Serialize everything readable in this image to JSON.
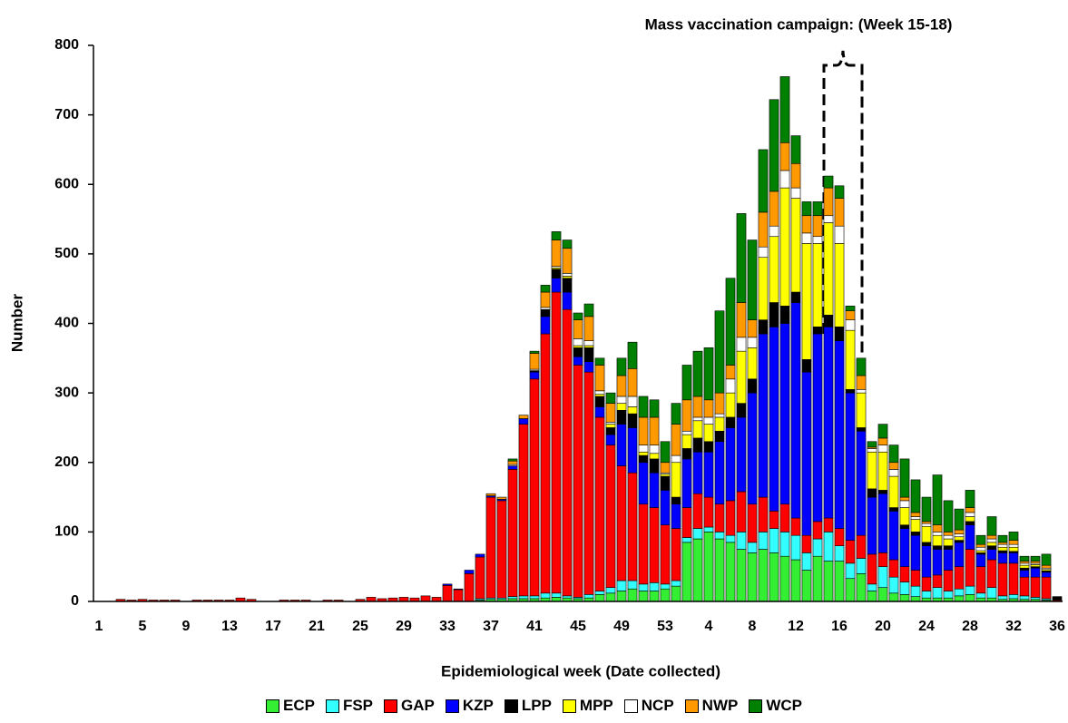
{
  "chart_data": {
    "type": "stacked_bar",
    "title": "Mass vaccination campaign: (Week 15-18)",
    "xlabel": "Epidemiological week (Date collected)",
    "ylabel": "Number",
    "ylim": [
      0,
      800
    ],
    "yticks": [
      0,
      100,
      200,
      300,
      400,
      500,
      600,
      700,
      800
    ],
    "legend": "bottom",
    "categories": [
      "1",
      null,
      null,
      null,
      "5",
      null,
      null,
      null,
      "9",
      null,
      null,
      null,
      "13",
      null,
      null,
      null,
      "17",
      null,
      null,
      null,
      "21",
      null,
      null,
      null,
      "25",
      null,
      null,
      null,
      "29",
      null,
      null,
      null,
      "33",
      null,
      null,
      null,
      "37",
      null,
      null,
      null,
      "41",
      null,
      null,
      null,
      "45",
      null,
      null,
      null,
      "49",
      null,
      null,
      null,
      "53",
      null,
      null,
      null,
      "4",
      null,
      null,
      null,
      "8",
      null,
      null,
      null,
      "12",
      null,
      null,
      null,
      "16",
      null,
      null,
      null,
      "20",
      null,
      null,
      null,
      "24",
      null,
      null,
      null,
      "28",
      null,
      null,
      null,
      "32",
      null,
      null,
      null,
      "36"
    ],
    "series": [
      {
        "name": "ECP",
        "color": "#33ee33",
        "values": [
          0,
          0,
          0,
          0,
          0,
          0,
          0,
          0,
          0,
          0,
          0,
          0,
          0,
          0,
          0,
          0,
          0,
          0,
          0,
          0,
          0,
          0,
          0,
          0,
          0,
          0,
          0,
          0,
          0,
          0,
          0,
          0,
          0,
          0,
          0,
          2,
          3,
          3,
          4,
          4,
          4,
          5,
          6,
          5,
          4,
          5,
          10,
          12,
          15,
          18,
          15,
          15,
          18,
          22,
          85,
          90,
          100,
          90,
          85,
          75,
          70,
          75,
          70,
          65,
          60,
          45,
          65,
          58,
          58,
          33,
          40,
          15,
          20,
          12,
          10,
          7,
          5,
          5,
          5,
          8,
          10,
          5,
          5,
          3,
          4,
          3,
          3,
          2,
          0
        ]
      },
      {
        "name": "FSP",
        "color": "#33ffff",
        "values": [
          0,
          0,
          0,
          0,
          0,
          0,
          0,
          0,
          0,
          0,
          0,
          0,
          0,
          0,
          0,
          0,
          0,
          0,
          0,
          0,
          0,
          0,
          0,
          0,
          0,
          0,
          0,
          0,
          0,
          0,
          0,
          0,
          0,
          0,
          0,
          2,
          2,
          2,
          3,
          4,
          4,
          7,
          6,
          3,
          2,
          5,
          5,
          8,
          15,
          12,
          10,
          12,
          7,
          8,
          7,
          15,
          7,
          10,
          10,
          25,
          15,
          25,
          35,
          35,
          35,
          25,
          25,
          42,
          22,
          22,
          22,
          10,
          30,
          23,
          18,
          15,
          10,
          15,
          10,
          10,
          12,
          7,
          15,
          5,
          6,
          5,
          3,
          2,
          0
        ]
      },
      {
        "name": "GAP",
        "color": "#ff0000",
        "values": [
          0,
          0,
          3,
          2,
          3,
          2,
          2,
          2,
          0,
          2,
          2,
          2,
          2,
          5,
          3,
          0,
          0,
          2,
          2,
          2,
          0,
          2,
          2,
          0,
          3,
          6,
          4,
          5,
          6,
          5,
          8,
          6,
          23,
          17,
          40,
          60,
          145,
          140,
          183,
          247,
          312,
          373,
          433,
          412,
          334,
          320,
          250,
          205,
          165,
          155,
          115,
          108,
          85,
          75,
          43,
          50,
          43,
          40,
          50,
          58,
          55,
          50,
          25,
          40,
          25,
          25,
          25,
          20,
          25,
          33,
          33,
          43,
          20,
          25,
          22,
          23,
          20,
          18,
          30,
          32,
          53,
          38,
          40,
          47,
          45,
          27,
          29,
          31,
          2
        ]
      },
      {
        "name": "KZP",
        "color": "#0000ff",
        "values": [
          0,
          0,
          0,
          0,
          0,
          0,
          0,
          0,
          0,
          0,
          0,
          0,
          0,
          0,
          0,
          0,
          0,
          0,
          0,
          0,
          0,
          0,
          0,
          0,
          0,
          0,
          0,
          0,
          0,
          0,
          0,
          0,
          2,
          1,
          5,
          4,
          2,
          2,
          5,
          8,
          10,
          25,
          20,
          25,
          12,
          15,
          15,
          15,
          60,
          65,
          60,
          50,
          50,
          35,
          70,
          60,
          65,
          90,
          105,
          107,
          160,
          235,
          265,
          260,
          310,
          235,
          270,
          275,
          270,
          212,
          150,
          82,
          85,
          70,
          55,
          50,
          45,
          37,
          30,
          35,
          35,
          18,
          15,
          15,
          15,
          10,
          13,
          7,
          0
        ]
      },
      {
        "name": "LPP",
        "color": "#000000",
        "values": [
          0,
          0,
          0,
          0,
          0,
          0,
          0,
          0,
          0,
          0,
          0,
          0,
          0,
          0,
          0,
          0,
          0,
          0,
          0,
          0,
          0,
          0,
          0,
          0,
          0,
          0,
          0,
          0,
          0,
          0,
          0,
          0,
          0,
          0,
          0,
          0,
          0,
          0,
          0,
          0,
          2,
          10,
          13,
          20,
          13,
          20,
          15,
          10,
          20,
          20,
          10,
          20,
          20,
          10,
          15,
          20,
          15,
          15,
          15,
          20,
          20,
          20,
          35,
          25,
          15,
          18,
          10,
          17,
          20,
          5,
          5,
          12,
          5,
          5,
          5,
          5,
          5,
          5,
          5,
          3,
          5,
          2,
          5,
          3,
          2,
          3,
          2,
          2,
          5
        ]
      },
      {
        "name": "MPP",
        "color": "#ffff00",
        "values": [
          0,
          0,
          0,
          0,
          0,
          0,
          0,
          0,
          0,
          0,
          0,
          0,
          0,
          0,
          0,
          0,
          0,
          0,
          0,
          0,
          0,
          0,
          0,
          0,
          0,
          0,
          0,
          0,
          0,
          0,
          0,
          0,
          0,
          0,
          0,
          0,
          0,
          0,
          0,
          0,
          0,
          0,
          2,
          3,
          3,
          3,
          3,
          5,
          10,
          10,
          5,
          8,
          3,
          50,
          20,
          25,
          25,
          20,
          35,
          75,
          45,
          90,
          95,
          170,
          135,
          167,
          120,
          133,
          120,
          85,
          50,
          53,
          55,
          45,
          25,
          18,
          23,
          15,
          10,
          5,
          7,
          3,
          5,
          5,
          6,
          4,
          3,
          2,
          0
        ]
      },
      {
        "name": "NCP",
        "color": "#ffffff",
        "values": [
          0,
          0,
          0,
          0,
          0,
          0,
          0,
          0,
          0,
          0,
          0,
          0,
          0,
          0,
          0,
          0,
          0,
          0,
          0,
          0,
          0,
          0,
          0,
          0,
          0,
          0,
          0,
          0,
          0,
          0,
          0,
          0,
          0,
          0,
          0,
          0,
          0,
          0,
          2,
          0,
          2,
          3,
          2,
          4,
          10,
          7,
          5,
          3,
          10,
          15,
          10,
          12,
          2,
          10,
          5,
          5,
          10,
          5,
          20,
          20,
          15,
          15,
          15,
          25,
          15,
          15,
          10,
          10,
          25,
          15,
          5,
          5,
          10,
          10,
          10,
          4,
          4,
          5,
          5,
          4,
          6,
          5,
          5,
          4,
          4,
          3,
          2,
          2,
          0
        ]
      },
      {
        "name": "NWP",
        "color": "#ff9900",
        "values": [
          0,
          0,
          0,
          0,
          0,
          0,
          0,
          0,
          0,
          0,
          0,
          0,
          0,
          0,
          0,
          0,
          0,
          0,
          0,
          0,
          0,
          0,
          0,
          0,
          0,
          0,
          0,
          0,
          0,
          0,
          0,
          0,
          0,
          0,
          0,
          0,
          3,
          3,
          5,
          5,
          23,
          22,
          38,
          36,
          27,
          35,
          37,
          27,
          30,
          40,
          40,
          40,
          15,
          45,
          45,
          30,
          25,
          30,
          20,
          50,
          25,
          50,
          50,
          40,
          35,
          25,
          30,
          40,
          40,
          13,
          20,
          2,
          10,
          10,
          5,
          6,
          3,
          10,
          5,
          6,
          7,
          4,
          5,
          3,
          6,
          3,
          3,
          4,
          0
        ]
      },
      {
        "name": "WCP",
        "color": "#008000",
        "values": [
          0,
          0,
          0,
          0,
          0,
          0,
          0,
          0,
          0,
          0,
          0,
          0,
          0,
          0,
          0,
          0,
          0,
          0,
          0,
          0,
          0,
          0,
          0,
          0,
          0,
          0,
          0,
          0,
          0,
          0,
          0,
          0,
          0,
          0,
          0,
          0,
          0,
          0,
          3,
          0,
          3,
          10,
          12,
          12,
          10,
          18,
          10,
          15,
          25,
          38,
          30,
          25,
          30,
          30,
          50,
          65,
          75,
          118,
          125,
          128,
          115,
          90,
          132,
          95,
          40,
          20,
          20,
          17,
          18,
          7,
          25,
          8,
          20,
          25,
          55,
          47,
          35,
          72,
          45,
          30,
          25,
          13,
          27,
          10,
          12,
          7,
          7,
          16,
          0
        ]
      }
    ]
  }
}
